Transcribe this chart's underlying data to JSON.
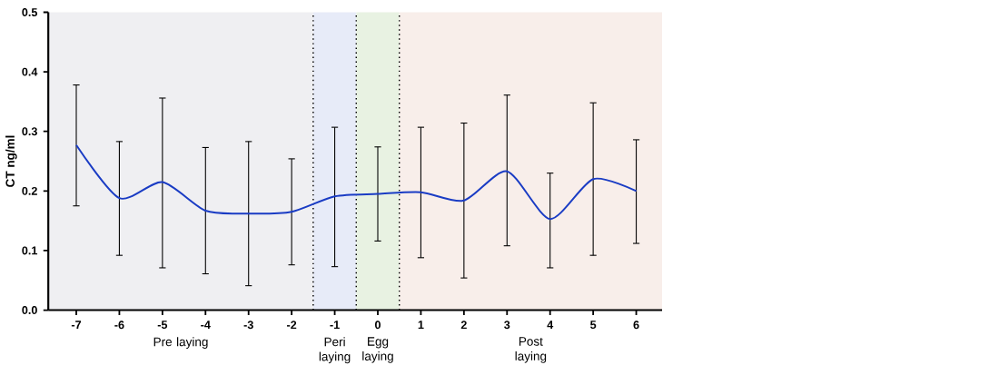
{
  "chart_data": {
    "type": "line",
    "ylabel": "CT ng/ml",
    "color": "#1a3cc4",
    "marker": "none",
    "line_style": "solid",
    "x": [
      -7,
      -6,
      -5,
      -4,
      -3,
      -2,
      -1,
      0,
      1,
      2,
      3,
      4,
      5,
      6
    ],
    "values": [
      0.277,
      0.188,
      0.215,
      0.167,
      0.162,
      0.165,
      0.191,
      0.195,
      0.198,
      0.184,
      0.233,
      0.153,
      0.22,
      0.2
    ],
    "errors": [
      [
        0.175,
        0.378
      ],
      [
        0.092,
        0.283
      ],
      [
        0.071,
        0.356
      ],
      [
        0.061,
        0.273
      ],
      [
        0.041,
        0.283
      ],
      [
        0.076,
        0.254
      ],
      [
        0.073,
        0.307
      ],
      [
        0.116,
        0.274
      ],
      [
        0.088,
        0.307
      ],
      [
        0.054,
        0.314
      ],
      [
        0.108,
        0.361
      ],
      [
        0.071,
        0.23
      ],
      [
        0.092,
        0.348
      ],
      [
        0.112,
        0.286
      ]
    ],
    "xlim": [
      -7.65,
      6.6
    ],
    "ylim": [
      0,
      0.5
    ],
    "xticks": [
      -7,
      -6,
      -5,
      -4,
      -3,
      -2,
      -1,
      0,
      1,
      2,
      3,
      4,
      5,
      6
    ],
    "yticks": [
      {
        "value": 0,
        "label": "0.0"
      },
      0.1,
      0.2,
      0.3,
      0.4,
      0.5
    ],
    "bands": [
      {
        "axis": "x",
        "from": -7.65,
        "to": -1.5,
        "label": "Pre laying",
        "color": "#efeff2"
      },
      {
        "axis": "x",
        "from": -1.5,
        "to": -0.5,
        "label": "Peri laying",
        "color": "#e7ebf8"
      },
      {
        "axis": "x",
        "from": -0.5,
        "to": 0.5,
        "label": "Egg laying",
        "color": "#e8f2e2"
      },
      {
        "axis": "x",
        "from": 0.5,
        "to": 6.6,
        "label": "Post laying",
        "color": "#f8eeea"
      }
    ],
    "ref_lines": [
      {
        "axis": "x",
        "value": -1.5,
        "line_style": "dotted"
      },
      {
        "axis": "x",
        "value": -0.5,
        "line_style": "dotted"
      },
      {
        "axis": "x",
        "value": 0.5,
        "line_style": "dotted"
      }
    ]
  }
}
